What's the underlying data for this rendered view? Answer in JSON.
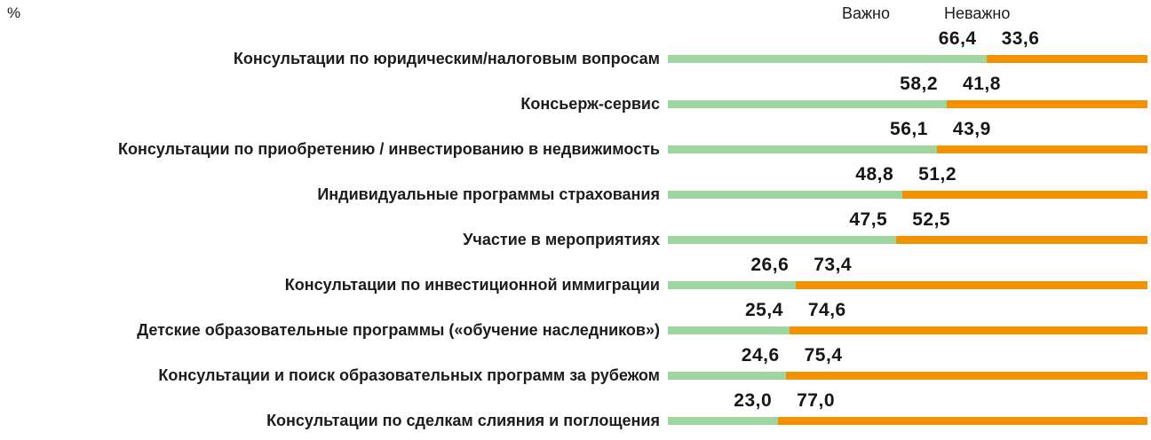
{
  "axis": {
    "unit_label": "%"
  },
  "chart_data": {
    "type": "bar",
    "orientation": "horizontal",
    "stacked": true,
    "xlim": [
      0,
      100
    ],
    "grid": false,
    "legend_position": "top",
    "categories": [
      "Консультации по юридическим/налоговым вопросам",
      "Консьерж-сервис",
      "Консультации по приобретению / инвестированию в недвижимость",
      "Индивидуальные программы страхования",
      "Участие в мероприятиях",
      "Консультации по инвестиционной иммиграции",
      "Детские образовательные программы («обучение наследников»)",
      "Консультации и поиск образовательных программ за рубежом",
      "Консультации по сделкам слияния и поглощения"
    ],
    "series": [
      {
        "name": "Важно",
        "color": "#9fd6a0",
        "values": [
          66.4,
          58.2,
          56.1,
          48.8,
          47.5,
          26.6,
          25.4,
          24.6,
          23.0
        ],
        "labels": [
          "66,4",
          "58,2",
          "56,1",
          "48,8",
          "47,5",
          "26,6",
          "25,4",
          "24,6",
          "23,0"
        ]
      },
      {
        "name": "Неважно",
        "color": "#f29200",
        "values": [
          33.6,
          41.8,
          43.9,
          51.2,
          52.5,
          73.4,
          74.6,
          75.4,
          77.0
        ],
        "labels": [
          "33,6",
          "41,8",
          "43,9",
          "51,2",
          "52,5",
          "73,4",
          "74,6",
          "75,4",
          "77,0"
        ]
      }
    ]
  }
}
